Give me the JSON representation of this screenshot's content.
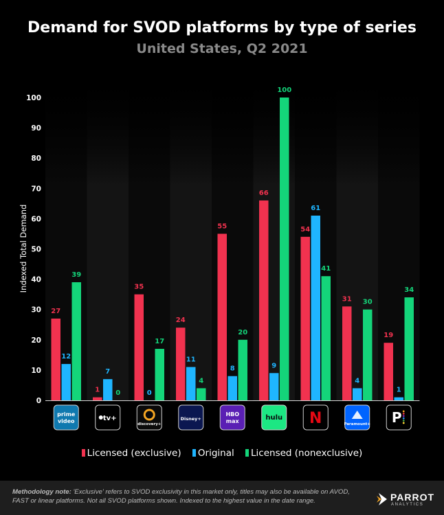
{
  "title": "Demand for SVOD platforms by type of series",
  "subtitle": "United States, Q2 2021",
  "colors": {
    "licensed_exclusive": "#f1324f",
    "original": "#1fb5ff",
    "licensed_nonexclusive": "#14d57a",
    "background": "#000000"
  },
  "chart_data": {
    "type": "bar",
    "ylabel": "Indexed Total Demand",
    "xlabel": "",
    "ylim": [
      0,
      100
    ],
    "yticks": [
      0,
      10,
      20,
      30,
      40,
      50,
      60,
      70,
      80,
      90,
      100
    ],
    "categories": [
      "prime video",
      "tv+",
      "discovery+",
      "Disney+",
      "HBO max",
      "hulu",
      "Netflix",
      "Paramount+",
      "Peacock"
    ],
    "series": [
      {
        "name": "Licensed (exclusive)",
        "values": [
          27,
          1,
          35,
          24,
          55,
          66,
          54,
          31,
          19
        ]
      },
      {
        "name": "Original",
        "values": [
          12,
          7,
          0,
          11,
          8,
          9,
          61,
          4,
          1
        ]
      },
      {
        "name": "Licensed (nonexclusive)",
        "values": [
          39,
          0,
          17,
          4,
          20,
          100,
          41,
          30,
          34
        ]
      }
    ],
    "legend": [
      "Licensed (exclusive)",
      "Original",
      "Licensed (nonexclusive)"
    ],
    "legend_position": "bottom"
  },
  "logos": [
    {
      "name": "prime-video",
      "line1": "prime",
      "line2": "video",
      "bg": "#0f79af"
    },
    {
      "name": "apple-tv",
      "line1": "tv+",
      "line2": "",
      "bg": "#000000"
    },
    {
      "name": "discovery",
      "line1": "discovery+",
      "line2": "",
      "bg": "#0a0a0a"
    },
    {
      "name": "disney",
      "line1": "Disney+",
      "line2": "",
      "bg": "#0b1750"
    },
    {
      "name": "hbo-max",
      "line1": "HBO",
      "line2": "max",
      "bg": "#5a1fb4"
    },
    {
      "name": "hulu",
      "line1": "hulu",
      "line2": "",
      "bg": "#1ce783"
    },
    {
      "name": "netflix",
      "line1": "N",
      "line2": "",
      "bg": "#000000"
    },
    {
      "name": "paramount",
      "line1": "Paramount+",
      "line2": "",
      "bg": "#0064ff"
    },
    {
      "name": "peacock",
      "line1": "P",
      "line2": "",
      "bg": "#000000"
    }
  ],
  "methodology_label": "Methodology note:",
  "methodology_text": "'Exclusive' refers to SVOD exclusivity in this market only, titles may also be available on AVOD, FAST or linear platforms. Not all SVOD platforms shown. Indexed to the highest value in the date range.",
  "brand": {
    "name": "PARROT",
    "sub": "ANALYTICS"
  }
}
